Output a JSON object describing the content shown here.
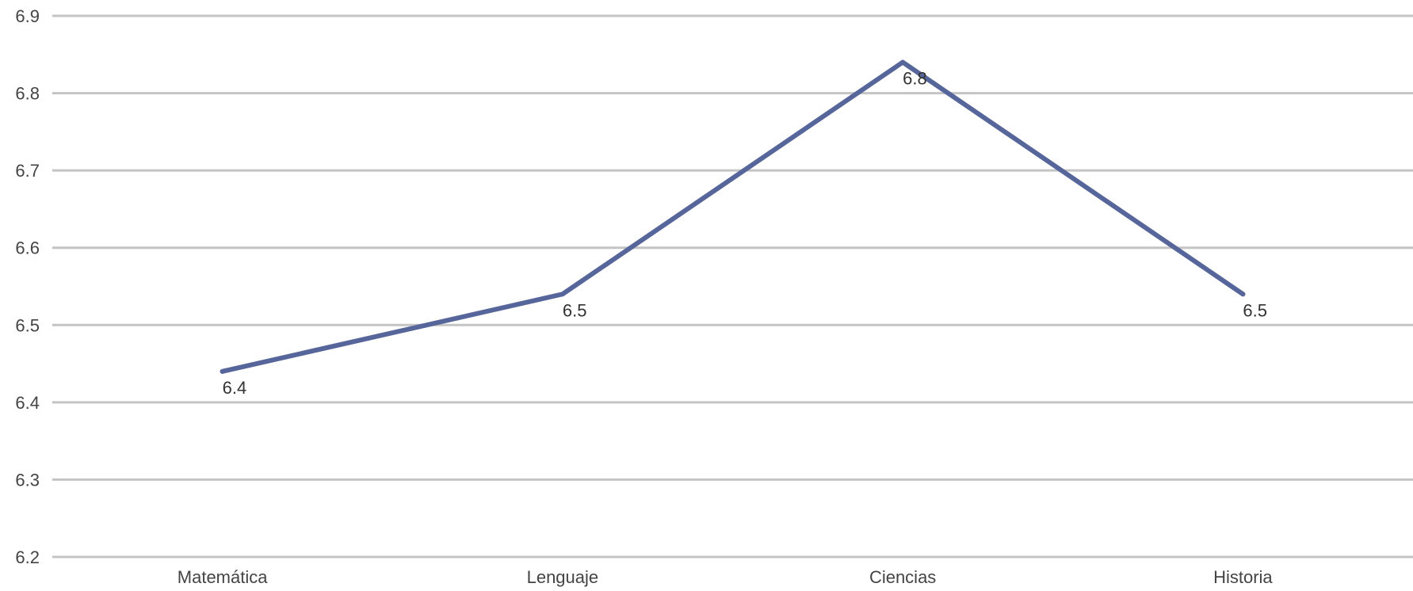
{
  "chart_data": {
    "type": "line",
    "categories": [
      "Matemática",
      "Lenguaje",
      "Ciencias",
      "Historia"
    ],
    "series": [
      {
        "values": [
          6.44,
          6.54,
          6.84,
          6.54
        ],
        "data_labels": [
          "6.4",
          "6.5",
          "6.8",
          "6.5"
        ],
        "color": "#56669a"
      }
    ],
    "title": "",
    "xlabel": "",
    "ylabel": "",
    "ylim": [
      6.2,
      6.9
    ],
    "y_ticks": [
      "6.2",
      "6.3",
      "6.4",
      "6.5",
      "6.6",
      "6.7",
      "6.8",
      "6.9"
    ],
    "grid": true,
    "legend": "none"
  }
}
